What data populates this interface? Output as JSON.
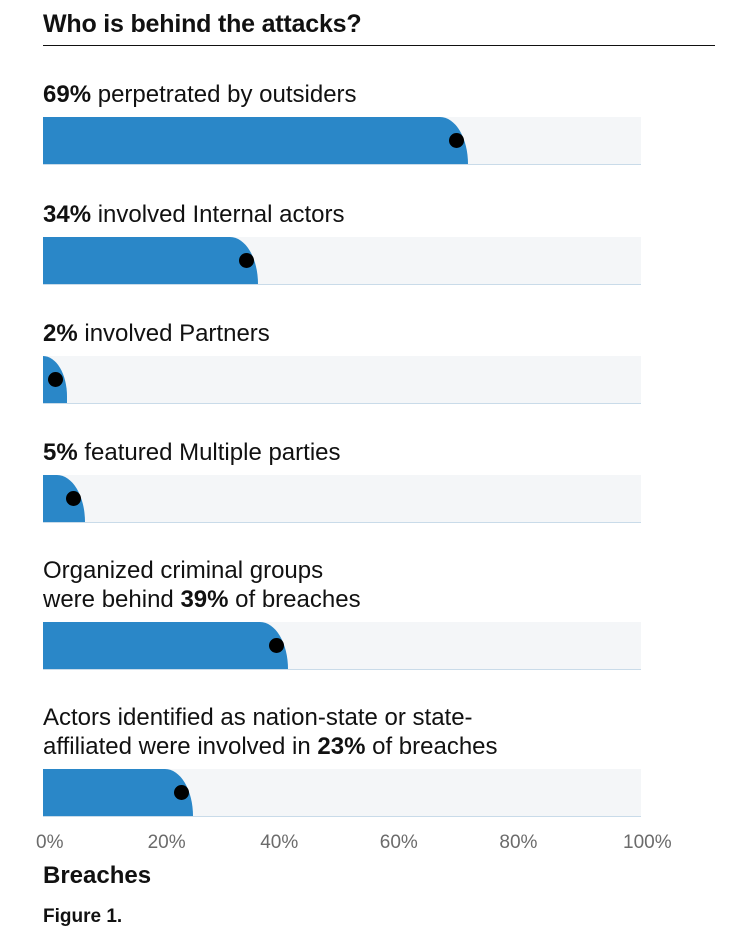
{
  "title": "Who is behind the attacks?",
  "chart_data": {
    "type": "bar",
    "orientation": "horizontal",
    "title": "Who is behind the attacks?",
    "xlabel": "Breaches",
    "xlim": [
      0,
      100
    ],
    "x_ticks": [
      "0%",
      "20%",
      "40%",
      "60%",
      "80%",
      "100%"
    ],
    "bars": [
      {
        "value": 69,
        "lines": [
          [
            {
              "t": "69%",
              "b": true
            },
            {
              "t": " perpetrated by outsiders",
              "b": false
            }
          ]
        ]
      },
      {
        "value": 34,
        "lines": [
          [
            {
              "t": "34%",
              "b": true
            },
            {
              "t": " involved Internal actors",
              "b": false
            }
          ]
        ]
      },
      {
        "value": 2,
        "lines": [
          [
            {
              "t": "2%",
              "b": true
            },
            {
              "t": " involved Partners",
              "b": false
            }
          ]
        ]
      },
      {
        "value": 5,
        "lines": [
          [
            {
              "t": "5%",
              "b": true
            },
            {
              "t": " featured Multiple parties",
              "b": false
            }
          ]
        ]
      },
      {
        "value": 39,
        "lines": [
          [
            {
              "t": "Organized criminal groups",
              "b": false
            }
          ],
          [
            {
              "t": "were behind ",
              "b": false
            },
            {
              "t": "39%",
              "b": true
            },
            {
              "t": " of breaches",
              "b": false
            }
          ]
        ]
      },
      {
        "value": 23,
        "lines": [
          [
            {
              "t": "Actors identified as nation-state or state-",
              "b": false
            }
          ],
          [
            {
              "t": "affiliated were involved in ",
              "b": false
            },
            {
              "t": "23%",
              "b": true
            },
            {
              "t": " of breaches",
              "b": false
            }
          ]
        ]
      }
    ]
  },
  "figure_label": "Figure 1."
}
